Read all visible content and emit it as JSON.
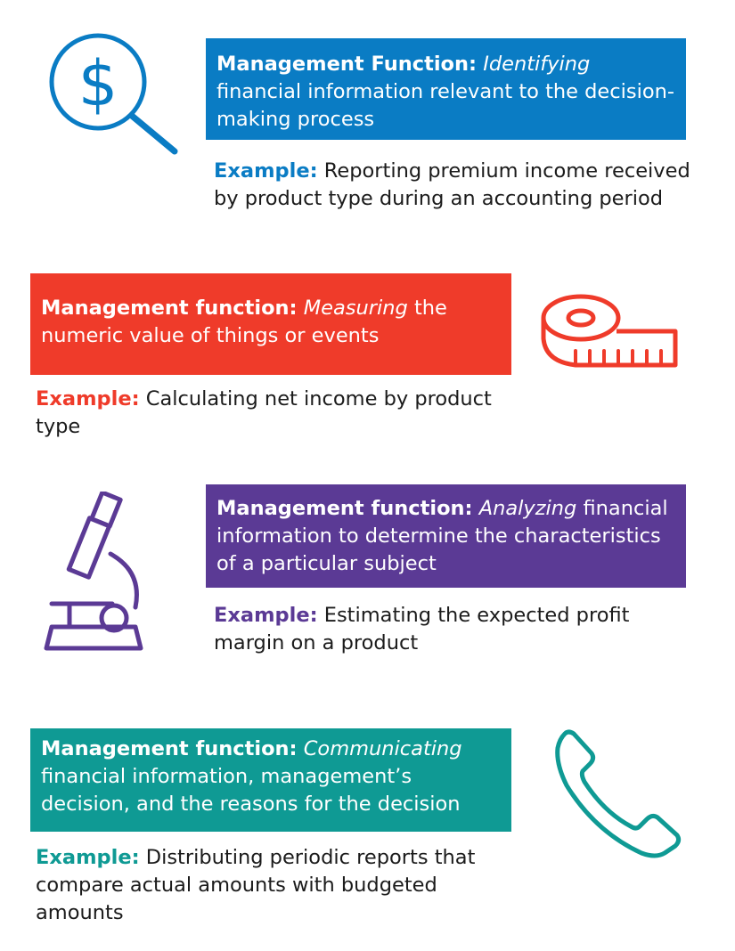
{
  "colors": {
    "blue": "#0a7cc4",
    "red": "#ef3b2a",
    "purple": "#5b3a95",
    "teal": "#0f9a94"
  },
  "sections": [
    {
      "label": "Management Function:",
      "verb": "Identifying",
      "rest": " financial information relevant to the decision-making process",
      "example_label": "Example:",
      "example_text": " Reporting premium income received by product type during an accounting period",
      "icon": "dollar-magnifier-icon"
    },
    {
      "label": "Management function:",
      "verb": "Measuring",
      "rest": " the numeric value of things or events",
      "example_label": "Example:",
      "example_text": " Calculating net income by product type",
      "icon": "tape-measure-icon"
    },
    {
      "label": "Management function:",
      "verb": "Analyzing",
      "rest": " financial information to determine the characteristics of a particular subject",
      "example_label": "Example:",
      "example_text": " Estimating the expected profit margin on a product",
      "icon": "microscope-icon"
    },
    {
      "label": "Management function:",
      "verb": "Communicating",
      "rest": " financial information, management’s decision, and the reasons for the decision",
      "example_label": "Example:",
      "example_text": " Distributing periodic reports that compare actual amounts with budgeted amounts",
      "icon": "phone-icon"
    }
  ]
}
